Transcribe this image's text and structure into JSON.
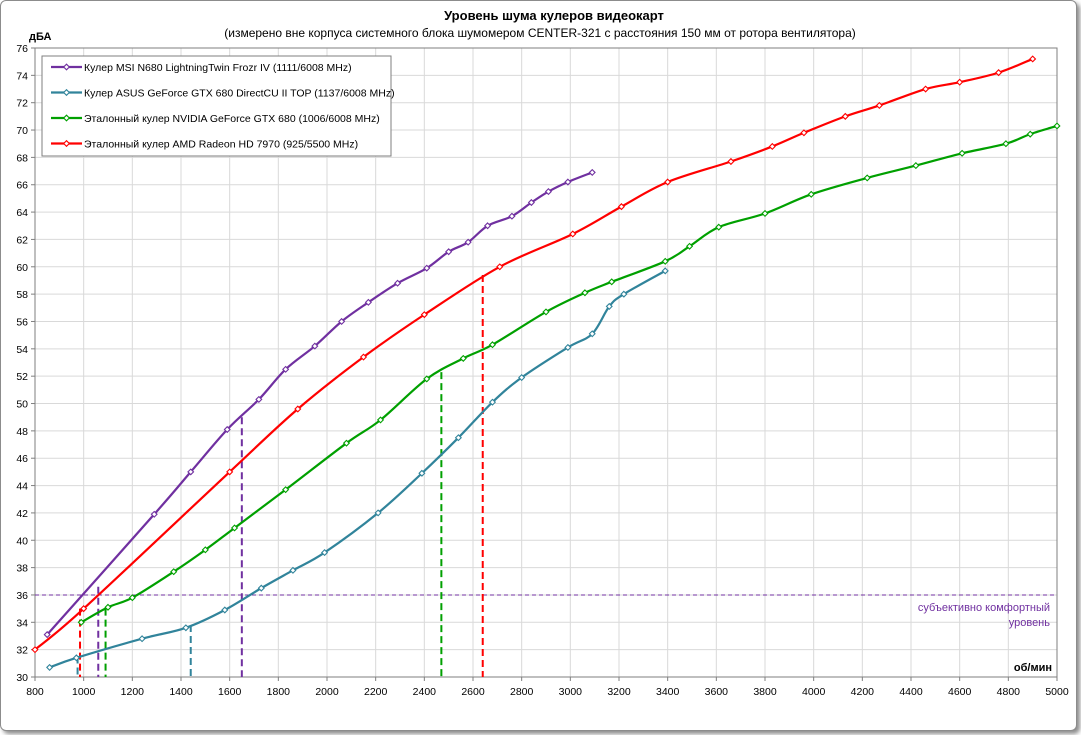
{
  "chart_data": {
    "type": "line",
    "title": "Уровень шума кулеров видеокарт",
    "subtitle": "(измерено вне корпуса системного блока шумомером CENTER-321 с расстояния 150  мм от ротора вентилятора)",
    "xlabel": "об/мин",
    "ylabel": "дБА",
    "xlim": [
      800,
      5000
    ],
    "ylim": [
      30,
      76
    ],
    "x_ticks": [
      "800",
      "1000",
      "1200",
      "1400",
      "1600",
      "1800",
      "2000",
      "2200",
      "2400",
      "2600",
      "2800",
      "3000",
      "3200",
      "3400",
      "3600",
      "3800",
      "4000",
      "4200",
      "4400",
      "4600",
      "4800",
      "5000"
    ],
    "y_ticks": [
      "30",
      "32",
      "34",
      "36",
      "38",
      "40",
      "42",
      "44",
      "46",
      "48",
      "50",
      "52",
      "54",
      "56",
      "58",
      "60",
      "62",
      "64",
      "66",
      "68",
      "70",
      "72",
      "74",
      "76"
    ],
    "grid": true,
    "legend_position": "top-left",
    "series": [
      {
        "name": "Кулер MSI N680 LightningTwin Frozr IV (1111/6008 MHz)",
        "color": "#7030a0",
        "marker_every": 1,
        "points": [
          [
            850,
            33.1
          ],
          [
            1290,
            41.9
          ],
          [
            1440,
            45.0
          ],
          [
            1590,
            48.1
          ],
          [
            1720,
            50.3
          ],
          [
            1830,
            52.5
          ],
          [
            1950,
            54.2
          ],
          [
            2060,
            56.0
          ],
          [
            2170,
            57.4
          ],
          [
            2290,
            58.8
          ],
          [
            2410,
            59.9
          ],
          [
            2500,
            61.1
          ],
          [
            2580,
            61.8
          ],
          [
            2660,
            63.0
          ],
          [
            2760,
            63.7
          ],
          [
            2840,
            64.7
          ],
          [
            2910,
            65.5
          ],
          [
            2990,
            66.2
          ],
          [
            3090,
            66.9
          ]
        ]
      },
      {
        "name": "Кулер ASUS GeForce GTX 680 DirectCU II TOP (1137/6008 MHz)",
        "color": "#31849b",
        "marker_every": 1,
        "points": [
          [
            860,
            30.7
          ],
          [
            970,
            31.4
          ],
          [
            1240,
            32.8
          ],
          [
            1420,
            33.6
          ],
          [
            1580,
            34.9
          ],
          [
            1730,
            36.5
          ],
          [
            1860,
            37.8
          ],
          [
            1990,
            39.1
          ],
          [
            2210,
            42.0
          ],
          [
            2390,
            44.9
          ],
          [
            2540,
            47.5
          ],
          [
            2680,
            50.1
          ],
          [
            2800,
            51.9
          ],
          [
            2990,
            54.1
          ],
          [
            3090,
            55.1
          ],
          [
            3160,
            57.1
          ],
          [
            3220,
            58.0
          ],
          [
            3390,
            59.7
          ]
        ]
      },
      {
        "name": "Эталонный кулер NVIDIA GeForce GTX 680 (1006/6008 MHz)",
        "color": "#00a000",
        "marker_every": 1,
        "points": [
          [
            990,
            34.0
          ],
          [
            1100,
            35.1
          ],
          [
            1200,
            35.8
          ],
          [
            1370,
            37.7
          ],
          [
            1500,
            39.3
          ],
          [
            1620,
            40.9
          ],
          [
            1830,
            43.7
          ],
          [
            2080,
            47.1
          ],
          [
            2220,
            48.8
          ],
          [
            2410,
            51.8
          ],
          [
            2560,
            53.3
          ],
          [
            2680,
            54.3
          ],
          [
            2900,
            56.7
          ],
          [
            3060,
            58.1
          ],
          [
            3170,
            58.9
          ],
          [
            3390,
            60.4
          ],
          [
            3490,
            61.5
          ],
          [
            3610,
            62.9
          ],
          [
            3800,
            63.9
          ],
          [
            3990,
            65.3
          ],
          [
            4220,
            66.5
          ],
          [
            4420,
            67.4
          ],
          [
            4610,
            68.3
          ],
          [
            4790,
            69.0
          ],
          [
            4890,
            69.7
          ],
          [
            5000,
            70.3
          ]
        ]
      },
      {
        "name": "Эталонный кулер AMD Radeon HD 7970 (925/5500 MHz)",
        "color": "#ff0000",
        "marker_every": 1,
        "points": [
          [
            800,
            32.0
          ],
          [
            1000,
            35.0
          ],
          [
            1600,
            45.0
          ],
          [
            1880,
            49.6
          ],
          [
            2150,
            53.4
          ],
          [
            2400,
            56.5
          ],
          [
            2710,
            60.0
          ],
          [
            3010,
            62.4
          ],
          [
            3210,
            64.4
          ],
          [
            3400,
            66.2
          ],
          [
            3660,
            67.7
          ],
          [
            3830,
            68.8
          ],
          [
            3960,
            69.8
          ],
          [
            4130,
            71.0
          ],
          [
            4270,
            71.8
          ],
          [
            4460,
            73.0
          ],
          [
            4600,
            73.5
          ],
          [
            4760,
            74.2
          ],
          [
            4900,
            75.2
          ]
        ]
      }
    ],
    "reference_line": {
      "y": 36,
      "color": "#7030a0",
      "label_line1": "субъективно комфортный",
      "label_line2": "уровень"
    },
    "drop_lines": [
      {
        "x": 1650,
        "y": 49.0,
        "color": "#7030a0"
      },
      {
        "x": 1440,
        "y": 33.8,
        "color": "#31849b"
      },
      {
        "x": 2470,
        "y": 52.3,
        "color": "#00a000"
      },
      {
        "x": 2640,
        "y": 59.4,
        "color": "#ff0000"
      },
      {
        "x": 985,
        "y": 35.0,
        "color": "#ff0000"
      },
      {
        "x": 1060,
        "y": 36.6,
        "color": "#7030a0"
      },
      {
        "x": 975,
        "y": 31.5,
        "color": "#31849b"
      },
      {
        "x": 1090,
        "y": 35.0,
        "color": "#00a000"
      }
    ]
  }
}
